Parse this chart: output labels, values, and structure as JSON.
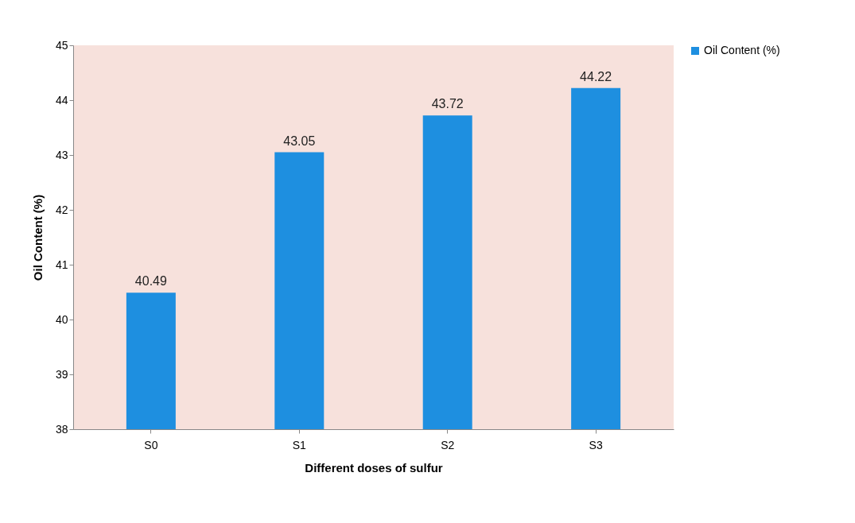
{
  "chart_data": {
    "type": "bar",
    "xlabel": "Different doses of sulfur",
    "ylabel": "Oil Content (%)",
    "categories": [
      "S0",
      "S1",
      "S2",
      "S3"
    ],
    "series": [
      {
        "name": "Oil Content (%)",
        "color": "#1e8fe0",
        "values": [
          40.49,
          43.05,
          43.72,
          44.22
        ]
      }
    ],
    "ylim": [
      38,
      45
    ],
    "yticks": [
      38,
      39,
      40,
      41,
      42,
      43,
      44,
      45
    ],
    "data_labels": true,
    "legend": "right",
    "grid": false
  }
}
